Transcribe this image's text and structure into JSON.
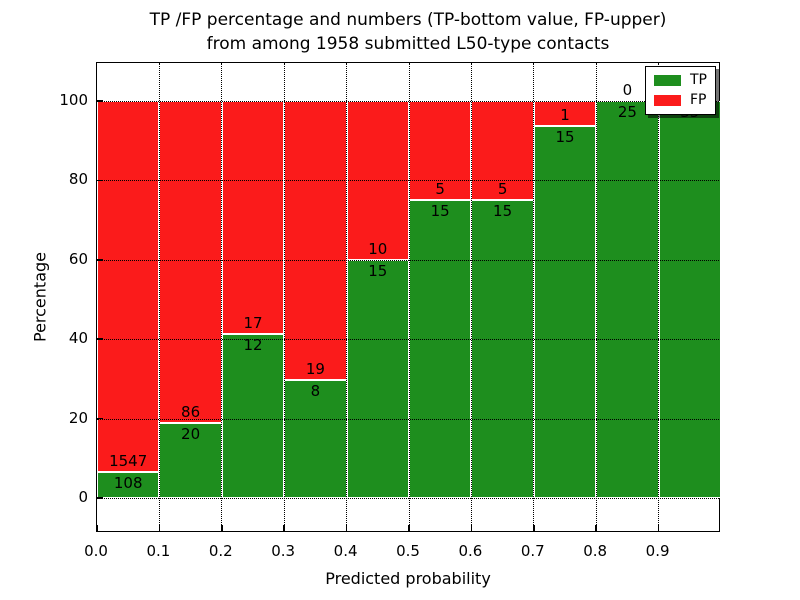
{
  "title": {
    "line1": "TP /FP percentage and numbers (TP-bottom value, FP-upper)",
    "line2": "from among 1958 submitted L50-type contacts"
  },
  "axes": {
    "xlabel": "Predicted probability",
    "ylabel": "Percentage",
    "xtick_labels": [
      "0.0",
      "0.1",
      "0.2",
      "0.3",
      "0.4",
      "0.5",
      "0.6",
      "0.7",
      "0.8",
      "0.9"
    ],
    "ytick_labels": [
      "0",
      "20",
      "40",
      "60",
      "80",
      "100"
    ],
    "ytick_values": [
      0,
      20,
      40,
      60,
      80,
      100
    ]
  },
  "legend": {
    "items": [
      {
        "label": "TP",
        "color": "#1e8e1e"
      },
      {
        "label": "FP",
        "color": "#fb1b1b"
      }
    ]
  },
  "colors": {
    "tp": "#1e8e1e",
    "fp": "#fb1b1b",
    "grid": "#000000",
    "background": "#ffffff"
  },
  "chart_data": {
    "type": "bar",
    "stacked": true,
    "normalized_to_percent": true,
    "title": "TP /FP percentage and numbers (TP-bottom value, FP-upper) from among 1958 submitted L50-type contacts",
    "xlabel": "Predicted probability",
    "ylabel": "Percentage",
    "xlim": [
      0.0,
      1.0
    ],
    "ylim": [
      -9,
      110
    ],
    "grid": true,
    "legend_position": "upper right",
    "total_contacts": 1958,
    "bin_start": [
      0.0,
      0.1,
      0.2,
      0.3,
      0.4,
      0.5,
      0.6,
      0.7,
      0.8,
      0.9
    ],
    "bin_width": 0.1,
    "series": [
      {
        "name": "TP",
        "counts": [
          108,
          20,
          12,
          8,
          15,
          15,
          15,
          15,
          25,
          35
        ]
      },
      {
        "name": "FP",
        "counts": [
          1547,
          86,
          17,
          19,
          10,
          5,
          5,
          1,
          0,
          0
        ]
      }
    ],
    "tp_percent": [
      6.53,
      18.87,
      41.38,
      29.63,
      60.0,
      75.0,
      75.0,
      93.75,
      100.0,
      100.0
    ],
    "bar_labels": {
      "tp": [
        "108",
        "20",
        "12",
        "8",
        "15",
        "15",
        "15",
        "15",
        "25",
        "35"
      ],
      "fp": [
        "1547",
        "86",
        "17",
        "19",
        "10",
        "5",
        "5",
        "1",
        "0",
        "0"
      ]
    }
  }
}
